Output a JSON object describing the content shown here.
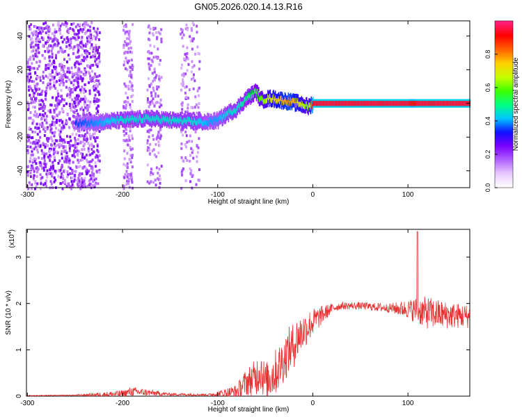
{
  "chart_data": [
    {
      "type": "heatmap",
      "title": "GN05.2026.020.14.13.R16",
      "xlabel": "Height of straight line (km)",
      "ylabel": "Frequency (Hz)",
      "xlim": [
        -301,
        165
      ],
      "ylim": [
        -50,
        49
      ],
      "xticks": [
        -300,
        -200,
        -100,
        0,
        100
      ],
      "yticks": [
        40,
        20,
        0,
        -20,
        -40
      ],
      "colorbar": {
        "label": "Normalized spectral amplitude",
        "range": [
          0,
          1
        ],
        "ticks": [
          0.0,
          0.2,
          0.4,
          0.6,
          0.8
        ],
        "colormap": [
          "#ffffff",
          "#e8c8ff",
          "#b060ff",
          "#7a00ff",
          "#1010ff",
          "#00c8ff",
          "#00ff80",
          "#40ff00",
          "#c8ff00",
          "#ffd000",
          "#ff6000",
          "#ff0000",
          "#ff2080"
        ]
      },
      "ridge": {
        "description_points_x_km": [
          -250,
          -225,
          -200,
          -175,
          -150,
          -125,
          -110,
          -100,
          -90,
          -80,
          -70,
          -60,
          -55,
          -45,
          -35,
          -25,
          -15,
          -5,
          0,
          50,
          100,
          104,
          110,
          165
        ],
        "frequency_hz": [
          -12,
          -11,
          -10,
          -9,
          -10,
          -11,
          -11,
          -10,
          -6,
          -3,
          3,
          7,
          2,
          3,
          2,
          1,
          0,
          -2,
          0,
          0,
          0,
          0,
          0,
          0
        ],
        "amplitude": [
          0.35,
          0.4,
          0.45,
          0.45,
          0.45,
          0.45,
          0.4,
          0.4,
          0.45,
          0.45,
          0.5,
          0.55,
          0.6,
          0.7,
          0.75,
          0.8,
          0.7,
          0.6,
          0.95,
          0.95,
          0.95,
          0.9,
          0.95,
          0.95
        ]
      },
      "noise_band_km": [
        -301,
        -225
      ],
      "sparse_noise_columns_km": [
        [
          -200,
          -190
        ],
        [
          -175,
          -160
        ],
        [
          -140,
          -120
        ]
      ]
    },
    {
      "type": "line",
      "series": [
        {
          "name": "SNR",
          "color": "#e83030"
        }
      ],
      "xlabel": "Height of straight line (km)",
      "ylabel": "SNR (10 * v/v)",
      "y_scale_label": "(x10",
      "y_scale_exponent": "4",
      "y_scale_suffix": ")",
      "xlim": [
        -301,
        165
      ],
      "ylim": [
        0,
        3.6
      ],
      "xticks": [
        -300,
        -200,
        -100,
        0,
        100
      ],
      "yticks": [
        0,
        1,
        2,
        3
      ],
      "envelope_km": [
        -301,
        -250,
        -200,
        -190,
        -150,
        -110,
        -100,
        -80,
        -70,
        -60,
        -55,
        -50,
        -40,
        -30,
        -25,
        -20,
        -15,
        -10,
        -5,
        0,
        10,
        20,
        30,
        50,
        80,
        100,
        110,
        120,
        140,
        165
      ],
      "envelope_mean": [
        0.01,
        0.02,
        0.05,
        0.1,
        0.04,
        0.03,
        0.05,
        0.1,
        0.3,
        0.4,
        0.6,
        0.3,
        0.5,
        0.8,
        1.0,
        1.1,
        1.3,
        1.4,
        1.5,
        1.6,
        1.75,
        1.9,
        1.95,
        1.95,
        1.9,
        1.88,
        1.85,
        1.8,
        1.75,
        1.72
      ],
      "envelope_spread": [
        0.01,
        0.01,
        0.08,
        0.1,
        0.03,
        0.02,
        0.06,
        0.15,
        0.3,
        0.4,
        0.5,
        0.4,
        0.5,
        0.5,
        0.5,
        0.5,
        0.45,
        0.4,
        0.35,
        0.3,
        0.2,
        0.1,
        0.08,
        0.08,
        0.1,
        0.2,
        0.3,
        0.35,
        0.3,
        0.25
      ],
      "spike": {
        "x": 110,
        "y": 3.55
      }
    }
  ]
}
